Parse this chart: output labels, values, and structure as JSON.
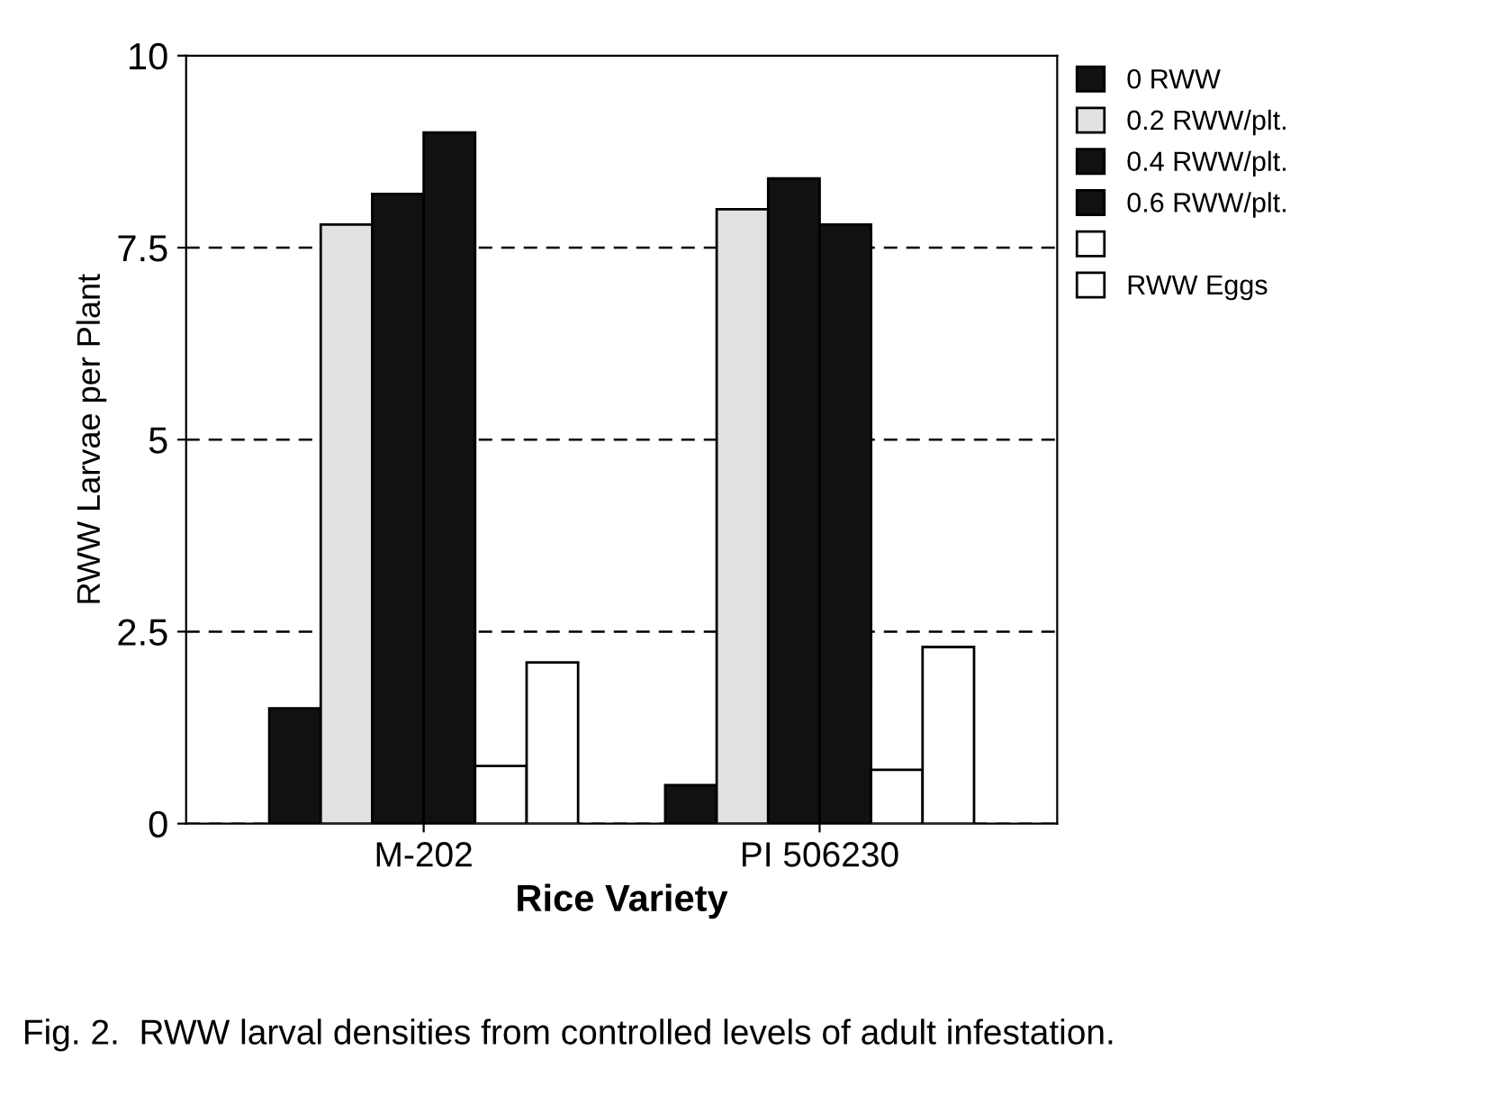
{
  "chart_data": {
    "type": "bar",
    "xlabel": "Rice Variety",
    "ylabel": "RWW Larvae per Plant",
    "categories": [
      "M-202",
      "PI 506230"
    ],
    "series": [
      {
        "name": "0 RWW",
        "color": "#111111",
        "values": [
          1.5,
          0.5
        ]
      },
      {
        "name": "0.2 RWW/plt.",
        "color": "#e2e2e2",
        "values": [
          7.8,
          8.0
        ]
      },
      {
        "name": "0.4 RWW/plt.",
        "color": "#111111",
        "values": [
          8.2,
          8.4
        ]
      },
      {
        "name": "0.6 RWW/plt.",
        "color": "#111111",
        "values": [
          9.0,
          7.8
        ]
      },
      {
        "color": "#ffffff",
        "values": [
          0.75,
          0.7
        ]
      },
      {
        "name": "RWW Eggs",
        "color": "#ffffff",
        "values": [
          2.1,
          2.3
        ]
      }
    ],
    "ylim": [
      0,
      10
    ],
    "yticks": [
      0,
      2.5,
      5,
      7.5,
      10
    ],
    "grid": "y",
    "legend": "right",
    "annotations": [
      "Fig. 2.  RWW larval densities from controlled levels of adult infestation."
    ]
  }
}
